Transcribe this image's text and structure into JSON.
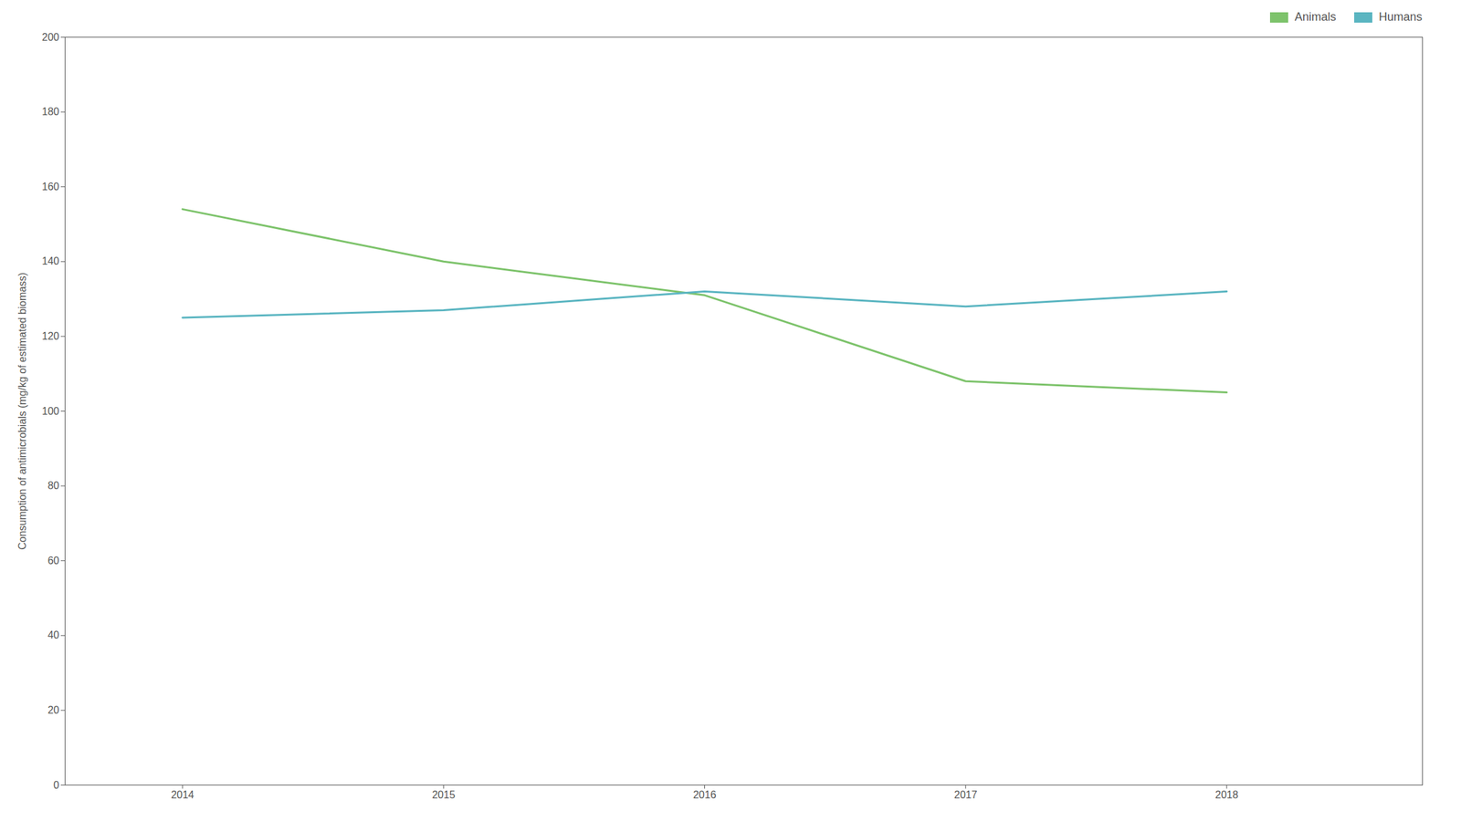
{
  "chart_data": {
    "type": "line",
    "x": [
      2014,
      2015,
      2016,
      2017,
      2018
    ],
    "series": [
      {
        "name": "Animals",
        "color": "#7dc36b",
        "values": [
          154,
          140,
          131,
          108,
          105
        ]
      },
      {
        "name": "Humans",
        "color": "#5ab5c1",
        "values": [
          125,
          127,
          132,
          128,
          132
        ]
      }
    ],
    "ylabel": "Consumption of antimicrobials (mg/kg of estimated biomass)",
    "xlim": [
      2013.55,
      2018.75
    ],
    "xticks": [
      2014,
      2015,
      2016,
      2017,
      2018
    ],
    "ylim": [
      0,
      200
    ],
    "yticks": [
      0,
      20,
      40,
      60,
      80,
      100,
      120,
      140,
      160,
      180,
      200
    ],
    "grid": false,
    "legend": "upper right"
  }
}
